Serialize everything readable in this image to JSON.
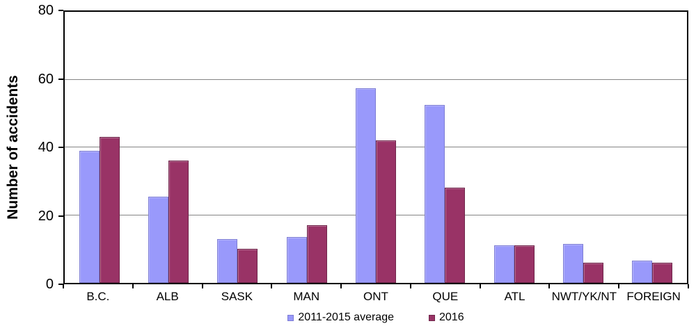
{
  "chart_data": {
    "type": "bar",
    "title": "",
    "categories": [
      "B.C.",
      "ALB",
      "SASK",
      "MAN",
      "ONT",
      "QUE",
      "ATL",
      "NWT/YK/NT",
      "FOREIGN"
    ],
    "series": [
      {
        "name": "2011-2015 average",
        "color": "#9999FB",
        "border_color": "#7D7DD4",
        "values": [
          39,
          25.5,
          13,
          13.5,
          57.5,
          52.5,
          11,
          11.5,
          6.5
        ]
      },
      {
        "name": "2016",
        "color": "#993366",
        "border_color": "#70264B",
        "values": [
          43,
          36,
          10,
          17,
          42,
          28,
          11,
          6,
          6
        ]
      }
    ],
    "xlabel": "",
    "ylabel": "Number of accidents",
    "ylim": [
      0,
      80
    ],
    "yticks": [
      0,
      20,
      40,
      60,
      80
    ],
    "grid": true,
    "legend_position": "bottom"
  },
  "colors": {
    "background": "#FFFFFF",
    "axis": "#000000",
    "gridline": "#848484",
    "text": "#000000"
  }
}
